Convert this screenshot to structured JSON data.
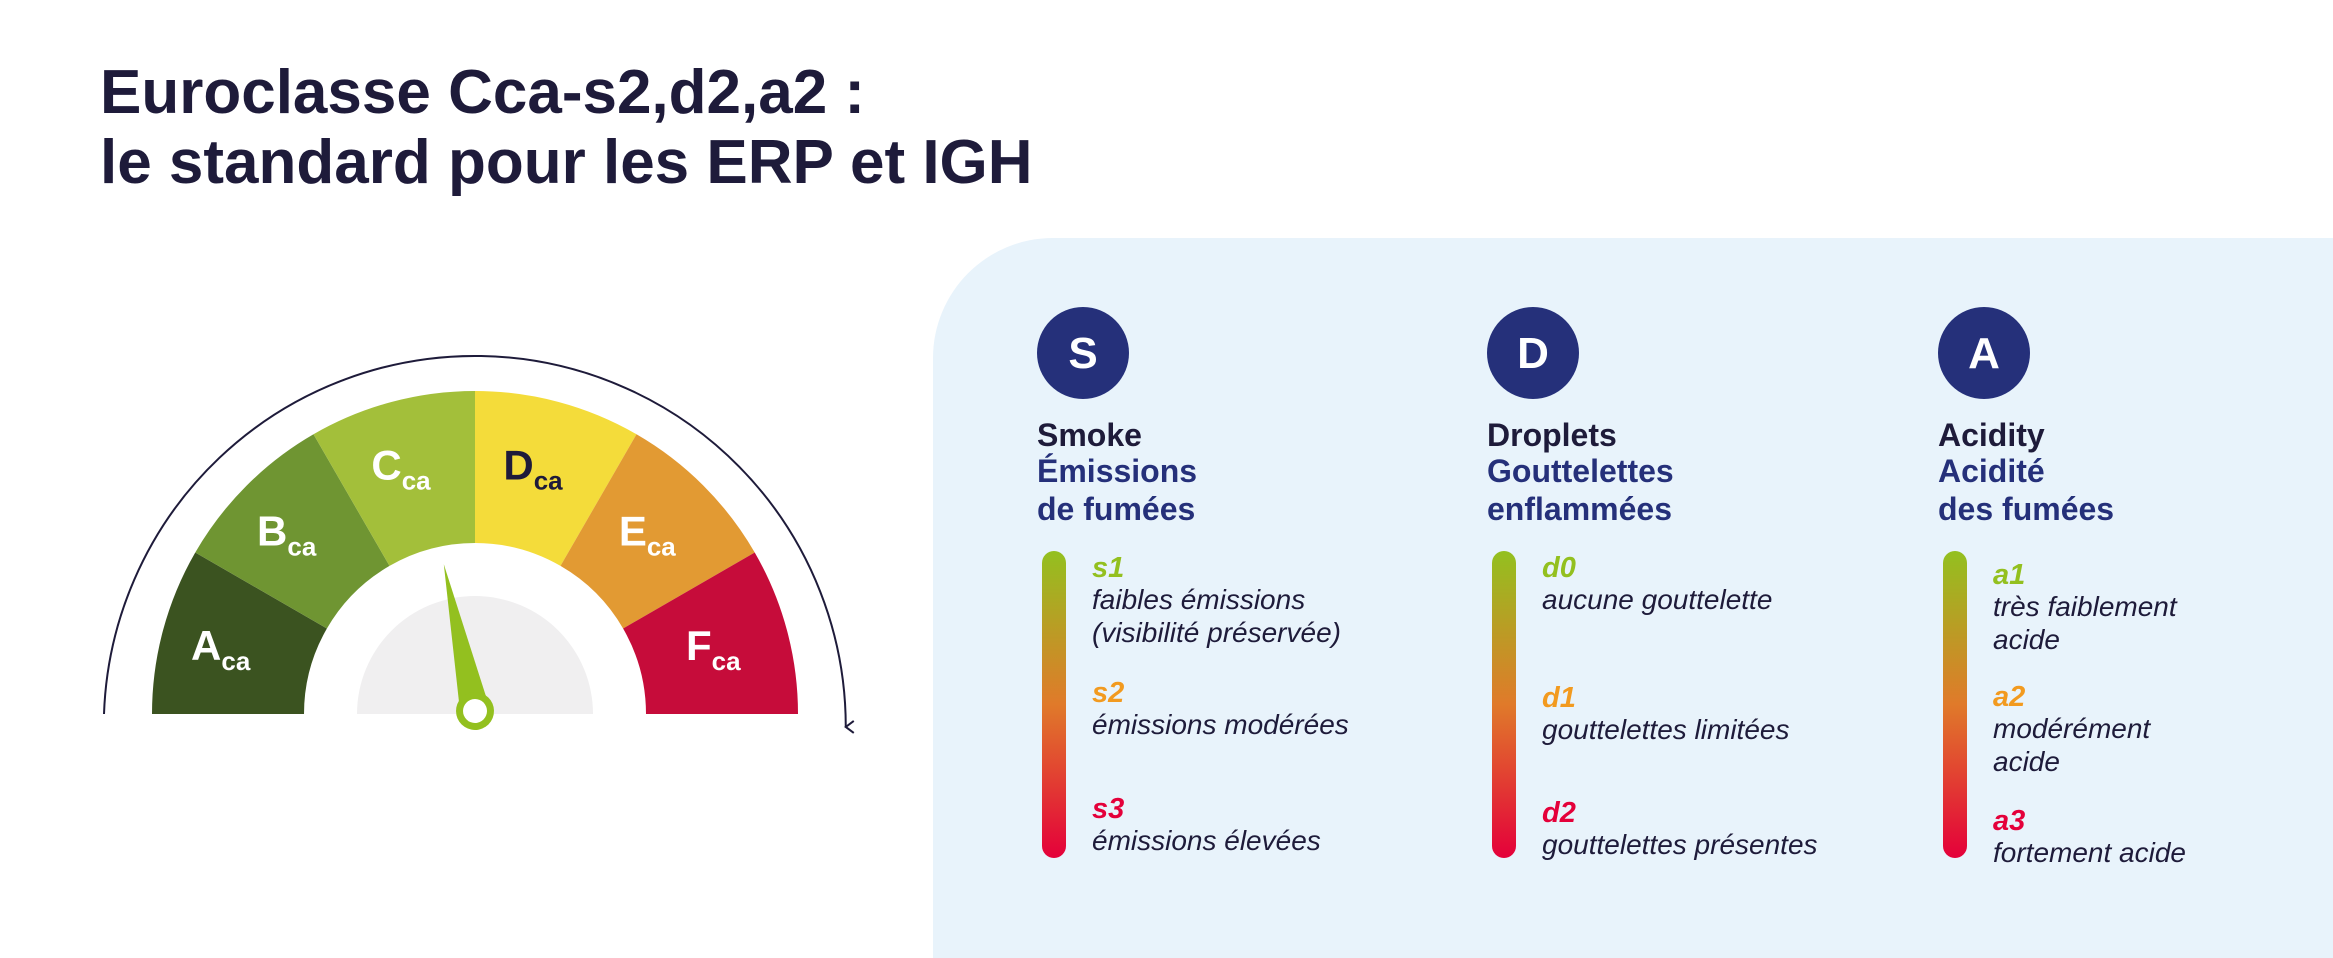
{
  "title": [
    "Euroclasse Cca-s2,d2,a2 :",
    "le standard pour les ERP et IGH"
  ],
  "gauge": {
    "segments": [
      {
        "letter": "A",
        "sub": "ca",
        "color": "#3b5320"
      },
      {
        "letter": "B",
        "sub": "ca",
        "color": "#6f9532"
      },
      {
        "letter": "C",
        "sub": "ca",
        "color": "#a3bf3a"
      },
      {
        "letter": "D",
        "sub": "ca",
        "color": "#f4dc3a"
      },
      {
        "letter": "E",
        "sub": "ca",
        "color": "#e29a33"
      },
      {
        "letter": "F",
        "sub": "ca",
        "color": "#c60c3a"
      }
    ]
  },
  "columns": [
    {
      "icon": "S",
      "title": "Smoke",
      "subtitle": [
        "Émissions",
        "de fumées"
      ],
      "levels": [
        {
          "code": "s1",
          "text": [
            "faibles émissions",
            "(visibilité préservée)"
          ]
        },
        {
          "code": "s2",
          "text": [
            "émissions modérées"
          ]
        },
        {
          "code": "s3",
          "text": [
            "émissions élevées"
          ]
        }
      ]
    },
    {
      "icon": "D",
      "title": "Droplets",
      "subtitle": [
        "Gouttelettes",
        "enflammées"
      ],
      "levels": [
        {
          "code": "d0",
          "text": [
            "aucune gouttelette"
          ]
        },
        {
          "code": "d1",
          "text": [
            "gouttelettes limitées"
          ]
        },
        {
          "code": "d2",
          "text": [
            "gouttelettes présentes"
          ]
        }
      ]
    },
    {
      "icon": "A",
      "title": "Acidity",
      "subtitle": [
        "Acidité",
        "des fumées"
      ],
      "levels": [
        {
          "code": "a1",
          "text": [
            "très faiblement",
            "acide"
          ]
        },
        {
          "code": "a2",
          "text": [
            "modérément",
            "acide"
          ]
        },
        {
          "code": "a3",
          "text": [
            "fortement acide"
          ]
        }
      ]
    }
  ]
}
